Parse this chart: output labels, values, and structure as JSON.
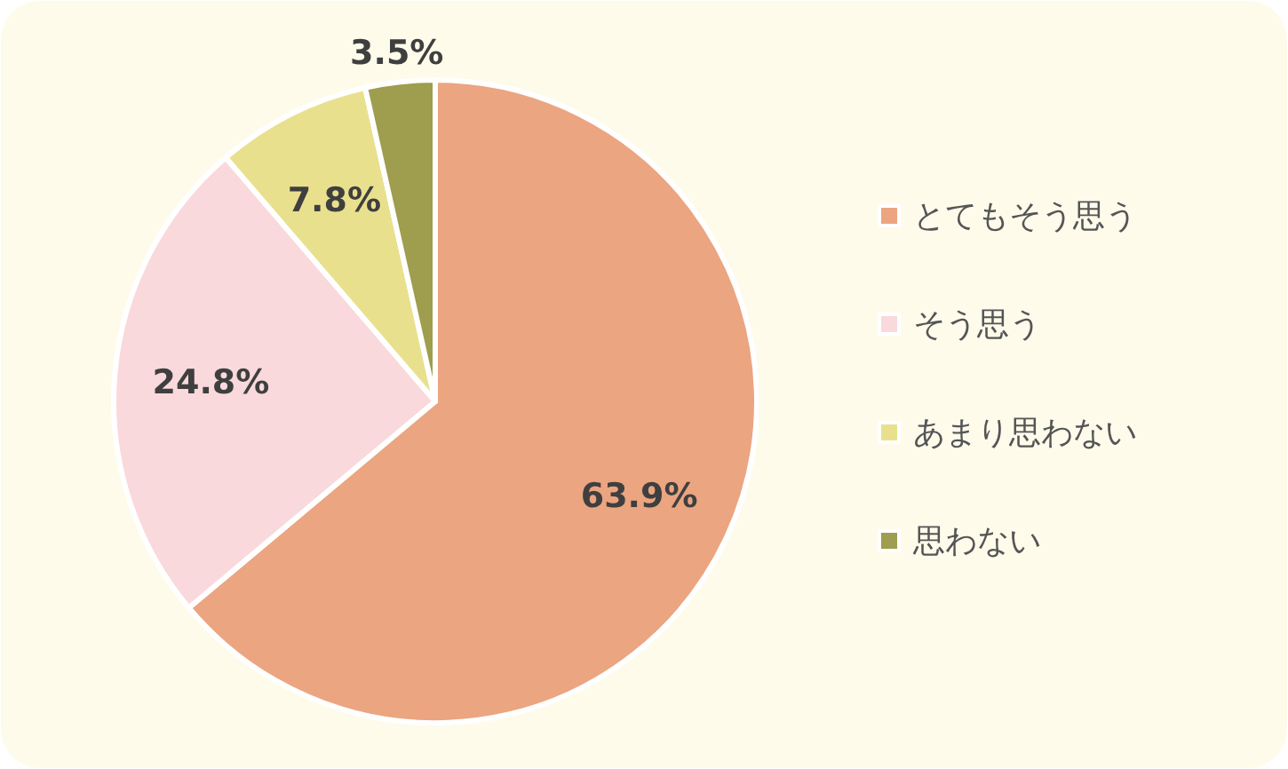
{
  "chart_data": {
    "type": "pie",
    "categories": [
      "とてもそう思う",
      "そう思う",
      "あまり思わない",
      "思わない"
    ],
    "values": [
      63.9,
      24.8,
      7.8,
      3.5
    ],
    "colors": [
      "#eba580",
      "#f9d9dc",
      "#e9e08e",
      "#9f9d4e"
    ],
    "value_labels": [
      "63.9%",
      "24.8%",
      "7.8%",
      "3.5%"
    ],
    "legend": "right"
  }
}
